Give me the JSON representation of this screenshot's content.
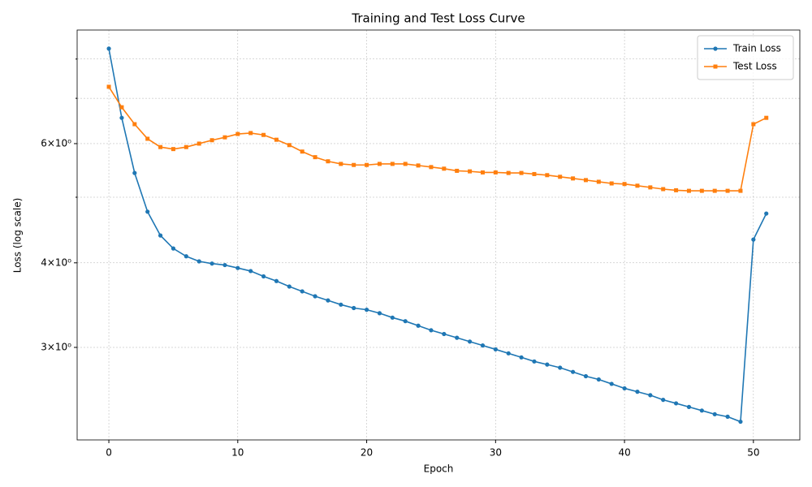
{
  "chart_data": {
    "type": "line",
    "title": "Training and Test Loss Curve",
    "xlabel": "Epoch",
    "ylabel": "Loss (log scale)",
    "x": [
      0,
      1,
      2,
      3,
      4,
      5,
      6,
      7,
      8,
      9,
      10,
      11,
      12,
      13,
      14,
      15,
      16,
      17,
      18,
      19,
      20,
      21,
      22,
      23,
      24,
      25,
      26,
      27,
      28,
      29,
      30,
      31,
      32,
      33,
      34,
      35,
      36,
      37,
      38,
      39,
      40,
      41,
      42,
      43,
      44,
      45,
      46,
      47,
      48,
      49,
      50,
      51
    ],
    "series": [
      {
        "name": "Train Loss",
        "color": "#1f77b4",
        "marker": "circle",
        "values": [
          8.29,
          6.55,
          5.43,
          4.76,
          4.39,
          4.2,
          4.09,
          4.02,
          3.99,
          3.97,
          3.93,
          3.89,
          3.82,
          3.76,
          3.69,
          3.63,
          3.57,
          3.52,
          3.47,
          3.43,
          3.41,
          3.37,
          3.32,
          3.28,
          3.23,
          3.18,
          3.14,
          3.1,
          3.06,
          3.02,
          2.98,
          2.94,
          2.9,
          2.86,
          2.83,
          2.8,
          2.76,
          2.72,
          2.69,
          2.65,
          2.61,
          2.58,
          2.55,
          2.51,
          2.48,
          2.45,
          2.42,
          2.39,
          2.37,
          2.33,
          4.33,
          4.73
        ]
      },
      {
        "name": "Test Loss",
        "color": "#ff7f0e",
        "marker": "square",
        "values": [
          7.28,
          6.79,
          6.41,
          6.1,
          5.93,
          5.89,
          5.93,
          6.0,
          6.07,
          6.13,
          6.2,
          6.22,
          6.18,
          6.08,
          5.97,
          5.84,
          5.73,
          5.65,
          5.6,
          5.58,
          5.58,
          5.6,
          5.6,
          5.6,
          5.57,
          5.54,
          5.51,
          5.47,
          5.46,
          5.44,
          5.44,
          5.43,
          5.43,
          5.41,
          5.39,
          5.36,
          5.33,
          5.3,
          5.27,
          5.24,
          5.23,
          5.2,
          5.17,
          5.14,
          5.12,
          5.11,
          5.11,
          5.11,
          5.11,
          5.11,
          6.41,
          6.55
        ]
      }
    ],
    "xlim": [
      -2.46,
      53.6
    ],
    "xticks": [
      0,
      10,
      20,
      30,
      40,
      50
    ],
    "ylim": [
      2.19,
      8.83
    ],
    "ylog": true,
    "yticks": [
      {
        "value": 3,
        "label": "3×10⁰"
      },
      {
        "value": 4,
        "label": "4×10⁰"
      },
      {
        "value": 6,
        "label": "6×10⁰"
      }
    ],
    "yminorticks": [
      5,
      7,
      8
    ],
    "grid": true,
    "legend": "upper right"
  }
}
